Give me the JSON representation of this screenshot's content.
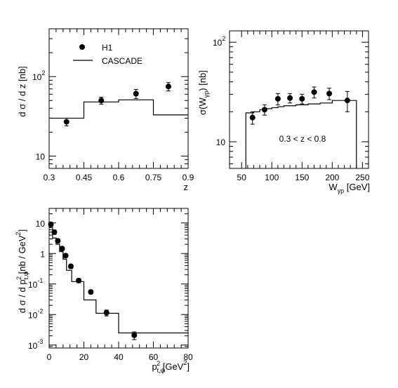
{
  "chart_data": [
    {
      "type": "scatter",
      "ylabel": "d σ / d z  [nb]",
      "xlabel": "z",
      "ylog": true,
      "xlim": [
        0.3,
        0.9
      ],
      "ylim": [
        7,
        400
      ],
      "x_ticks": [
        "0.3",
        "0.45",
        "0.6",
        "0.75",
        "0.9"
      ],
      "x_tick_values": [
        0.3,
        0.45,
        0.6,
        0.75,
        0.9
      ],
      "y_ticks": [
        {
          "v": 10,
          "base": "10",
          "exp": ""
        },
        {
          "v": 100,
          "base": "10",
          "exp": "2"
        }
      ],
      "legend": {
        "placement": "top-left",
        "data_label": "H1",
        "model_label": "CASCADE"
      },
      "series": [
        {
          "name": "H1",
          "x": [
            0.375,
            0.525,
            0.675,
            0.815
          ],
          "y": [
            27,
            50,
            61,
            75
          ],
          "yerr": [
            3,
            5,
            8,
            9
          ]
        },
        {
          "name": "CASCADE",
          "edges": [
            0.3,
            0.45,
            0.6,
            0.75,
            0.9
          ],
          "values": [
            30,
            48,
            51,
            33
          ]
        }
      ]
    },
    {
      "type": "scatter",
      "ylabel": "σ(W",
      "ylabel_sub": "γp",
      "ylabel_end": ") [nb]",
      "xlabel": "W",
      "xlabel_sub": "γp",
      "xlabel_end": "  [GeV]",
      "ylog": true,
      "xlim": [
        30,
        260
      ],
      "ylim": [
        5.4,
        130
      ],
      "x_ticks": [
        "50",
        "100",
        "150",
        "200",
        "250"
      ],
      "x_tick_values": [
        50,
        100,
        150,
        200,
        250
      ],
      "y_ticks": [
        {
          "v": 10,
          "base": "10",
          "exp": ""
        },
        {
          "v": 100,
          "base": "10",
          "exp": "2"
        }
      ],
      "annotation": "0.3 < z < 0.8",
      "series": [
        {
          "name": "H1",
          "x": [
            68,
            88,
            110,
            130,
            150,
            170,
            195,
            225
          ],
          "y": [
            17.5,
            21,
            27,
            27.5,
            27,
            31.5,
            30.5,
            26
          ],
          "yerr": [
            2.5,
            2.5,
            3.5,
            3,
            3,
            4,
            4,
            6
          ]
        },
        {
          "name": "CASCADE",
          "edges": [
            57,
            70,
            80,
            90,
            100,
            110,
            120,
            140,
            160,
            180,
            200,
            240
          ],
          "values": [
            19.5,
            20,
            21,
            21.5,
            22,
            22.5,
            23,
            23.5,
            24,
            24.5,
            26
          ],
          "drop_to_axis": true
        }
      ]
    },
    {
      "type": "scatter",
      "ylabel": "d σ / d p",
      "ylabel_sub": "t,ψ",
      "ylabel_sup": "2",
      "ylabel_end": " [nb / GeV",
      "ylabel_end_sup": "2",
      "ylabel_close": "]",
      "xlabel": "p",
      "xlabel_sub": "t,ψ",
      "xlabel_sup": "2",
      "xlabel_end": "  [GeV",
      "xlabel_end_sup": "2",
      "xlabel_close": "]",
      "ylog": true,
      "xlim": [
        0,
        80
      ],
      "ylim": [
        0.0008,
        30
      ],
      "x_ticks": [
        "0",
        "20",
        "40",
        "60",
        "80"
      ],
      "x_tick_values": [
        0,
        20,
        40,
        60,
        80
      ],
      "y_ticks": [
        {
          "v": 10,
          "base": "10",
          "exp": ""
        },
        {
          "v": 1,
          "base": "1",
          "exp": ""
        },
        {
          "v": 0.1,
          "base": "10",
          "exp": "-1"
        },
        {
          "v": 0.01,
          "base": "10",
          "exp": "-2"
        },
        {
          "v": 0.001,
          "base": "10",
          "exp": "-3"
        }
      ],
      "series": [
        {
          "name": "H1",
          "x": [
            1,
            3,
            5,
            7.5,
            9.5,
            12.5,
            17,
            24,
            33,
            49
          ],
          "y": [
            9,
            5,
            2.6,
            1.45,
            0.85,
            0.38,
            0.13,
            0.055,
            0.0115,
            0.0021
          ],
          "yerr": [
            1.5,
            0.8,
            0.4,
            0.2,
            0.12,
            0.06,
            0.02,
            0.008,
            0.0025,
            0.0006
          ]
        },
        {
          "name": "CASCADE",
          "edges": [
            2,
            4,
            6,
            8,
            10,
            13,
            20,
            27,
            40,
            80
          ],
          "values": [
            3.2,
            2.0,
            1.15,
            0.65,
            0.28,
            0.12,
            0.03,
            0.011,
            0.0025
          ],
          "first_edge_top": 7
        }
      ]
    }
  ]
}
